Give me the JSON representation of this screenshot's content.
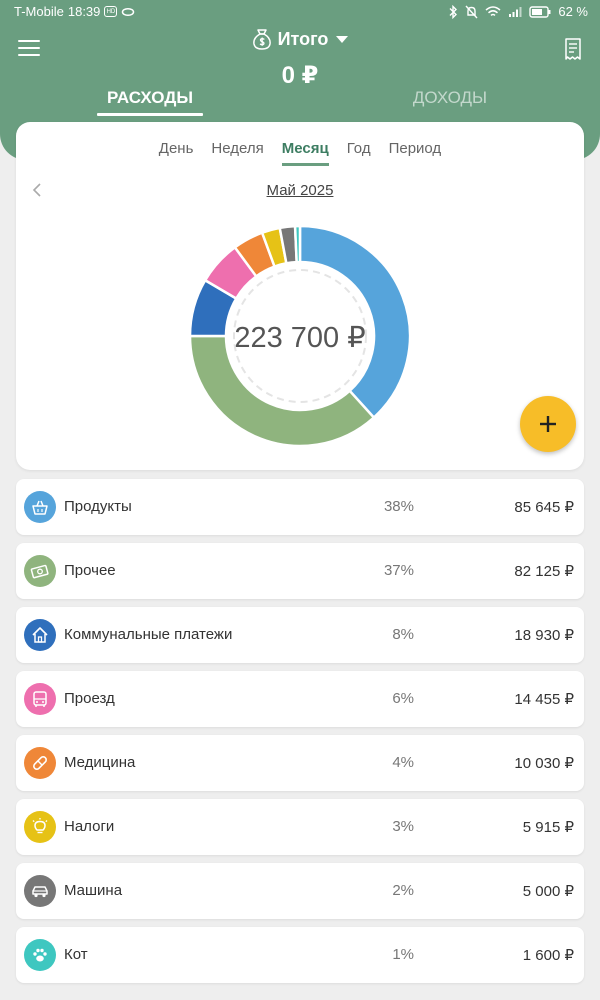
{
  "status_bar": {
    "carrier": "T-Mobile",
    "time": "18:39",
    "badge": "HD",
    "battery": "62 %"
  },
  "header": {
    "title": "Итого",
    "total": "0 ₽"
  },
  "type_tabs": [
    {
      "label": "РАСХОДЫ",
      "active": true
    },
    {
      "label": "ДОХОДЫ",
      "active": false
    }
  ],
  "periods": [
    {
      "label": "День",
      "active": false
    },
    {
      "label": "Неделя",
      "active": false
    },
    {
      "label": "Месяц",
      "active": true
    },
    {
      "label": "Год",
      "active": false
    },
    {
      "label": "Период",
      "active": false
    }
  ],
  "month_label": "Май 2025",
  "chart": {
    "center_label": "223 700 ₽"
  },
  "chart_data": {
    "type": "pie",
    "categories": [
      "Продукты",
      "Прочее",
      "Коммунальные платежи",
      "Проезд",
      "Медицина",
      "Налоги",
      "Машина",
      "Кот"
    ],
    "values": [
      85645,
      82125,
      18930,
      14455,
      10030,
      5915,
      5000,
      1600
    ],
    "colors": [
      "#56a4db",
      "#8fb47e",
      "#2f6fbc",
      "#ee6fae",
      "#ef8738",
      "#e6c216",
      "#777777",
      "#3ec7c0"
    ],
    "title": "",
    "total_label": "223 700 ₽"
  },
  "categories": [
    {
      "name": "Продукты",
      "pct": "38%",
      "amount": "85 645 ₽",
      "color": "#56a4db",
      "icon": "basket-icon"
    },
    {
      "name": "Прочее",
      "pct": "37%",
      "amount": "82 125 ₽",
      "color": "#8fb47e",
      "icon": "cash-icon"
    },
    {
      "name": "Коммунальные платежи",
      "pct": "8%",
      "amount": "18 930 ₽",
      "color": "#2f6fbc",
      "icon": "house-icon"
    },
    {
      "name": "Проезд",
      "pct": "6%",
      "amount": "14 455 ₽",
      "color": "#ee6fae",
      "icon": "bus-icon"
    },
    {
      "name": "Медицина",
      "pct": "4%",
      "amount": "10 030 ₽",
      "color": "#ef8738",
      "icon": "pill-icon"
    },
    {
      "name": "Налоги",
      "pct": "3%",
      "amount": "5 915 ₽",
      "color": "#e6c216",
      "icon": "lightbulb-icon"
    },
    {
      "name": "Машина",
      "pct": "2%",
      "amount": "5 000 ₽",
      "color": "#777777",
      "icon": "car-icon"
    },
    {
      "name": "Кот",
      "pct": "1%",
      "amount": "1 600 ₽",
      "color": "#3ec7c0",
      "icon": "paw-icon"
    }
  ]
}
